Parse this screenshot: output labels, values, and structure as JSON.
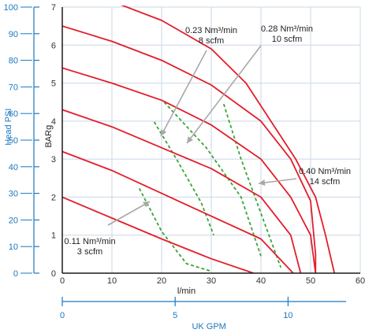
{
  "colors": {
    "curve": "#e31d2a",
    "air_line": "#3aa535",
    "aux_axis": "#1a78c2",
    "grid": "#c9d7e6",
    "axis": "#1a1a1a",
    "arrow": "#a8a8a8"
  },
  "chart_data": {
    "type": "line",
    "x_axis": {
      "label": "l/min",
      "range": [
        0,
        60
      ],
      "ticks": [
        0,
        10,
        20,
        30,
        40,
        50,
        60
      ]
    },
    "y_axis": {
      "label": "BARg",
      "range": [
        0,
        7
      ],
      "ticks": [
        0,
        1,
        2,
        3,
        4,
        5,
        6,
        7
      ]
    },
    "aux_y_axis": {
      "label": "Head PSI",
      "range": [
        0,
        100
      ],
      "ticks": [
        0,
        10,
        20,
        30,
        40,
        50,
        60,
        70,
        80,
        90,
        100
      ]
    },
    "aux_x_axis": {
      "label": "UK GPM",
      "ticks": [
        0,
        5,
        10
      ]
    },
    "grid": true,
    "series": [
      {
        "values": [
          [
            0,
            2.0
          ],
          [
            10,
            1.45
          ],
          [
            20,
            0.9
          ],
          [
            30,
            0.38
          ],
          [
            38.5,
            0
          ]
        ]
      },
      {
        "values": [
          [
            0,
            3.2
          ],
          [
            10,
            2.7
          ],
          [
            20,
            2.1
          ],
          [
            30,
            1.5
          ],
          [
            40,
            0.9
          ],
          [
            46.5,
            0
          ]
        ]
      },
      {
        "values": [
          [
            0,
            4.3
          ],
          [
            10,
            3.85
          ],
          [
            20,
            3.3
          ],
          [
            30,
            2.75
          ],
          [
            40,
            2.0
          ],
          [
            46,
            1.0
          ],
          [
            48,
            0
          ]
        ]
      },
      {
        "values": [
          [
            0,
            5.4
          ],
          [
            10,
            5.0
          ],
          [
            20,
            4.55
          ],
          [
            30,
            3.9
          ],
          [
            40,
            3.0
          ],
          [
            46,
            2.0
          ],
          [
            50,
            1.0
          ],
          [
            51,
            0
          ]
        ]
      },
      {
        "values": [
          [
            0,
            6.5
          ],
          [
            10,
            6.1
          ],
          [
            20,
            5.6
          ],
          [
            30,
            4.95
          ],
          [
            40,
            4.0
          ],
          [
            46,
            3.0
          ],
          [
            50,
            1.9
          ],
          [
            51,
            0.5
          ],
          [
            51,
            0
          ]
        ]
      },
      {
        "values": [
          [
            0,
            7.5
          ],
          [
            10,
            7.15
          ],
          [
            20,
            6.65
          ],
          [
            30,
            5.9
          ],
          [
            37,
            5.0
          ],
          [
            42,
            4.0
          ],
          [
            47,
            3.0
          ],
          [
            51,
            2.0
          ],
          [
            53,
            1.0
          ],
          [
            54.8,
            0
          ]
        ]
      }
    ],
    "air_consumption_lines": [
      {
        "values": [
          [
            15.5,
            2.23
          ],
          [
            20,
            1.1
          ],
          [
            25,
            0.25
          ],
          [
            30,
            0.05
          ]
        ]
      },
      {
        "values": [
          [
            18.5,
            3.98
          ],
          [
            23,
            3.0
          ],
          [
            28,
            1.85
          ],
          [
            30.5,
            1.0
          ]
        ]
      },
      {
        "values": [
          [
            20.5,
            4.5
          ],
          [
            29,
            3.3
          ],
          [
            36,
            2.0
          ],
          [
            40,
            0.45
          ]
        ]
      },
      {
        "values": [
          [
            32.5,
            4.45
          ],
          [
            36,
            3.0
          ],
          [
            44,
            0.15
          ]
        ]
      }
    ],
    "annotations": [
      {
        "lines": [
          "0.23 Nm³/min",
          "8 scfm"
        ]
      },
      {
        "lines": [
          "0.28 Nm³/min",
          "10 scfm"
        ]
      },
      {
        "lines": [
          "0.40 Nm³/min",
          "14 scfm"
        ]
      },
      {
        "lines": [
          "0.11 Nm³/min",
          "3 scfm"
        ]
      }
    ]
  }
}
